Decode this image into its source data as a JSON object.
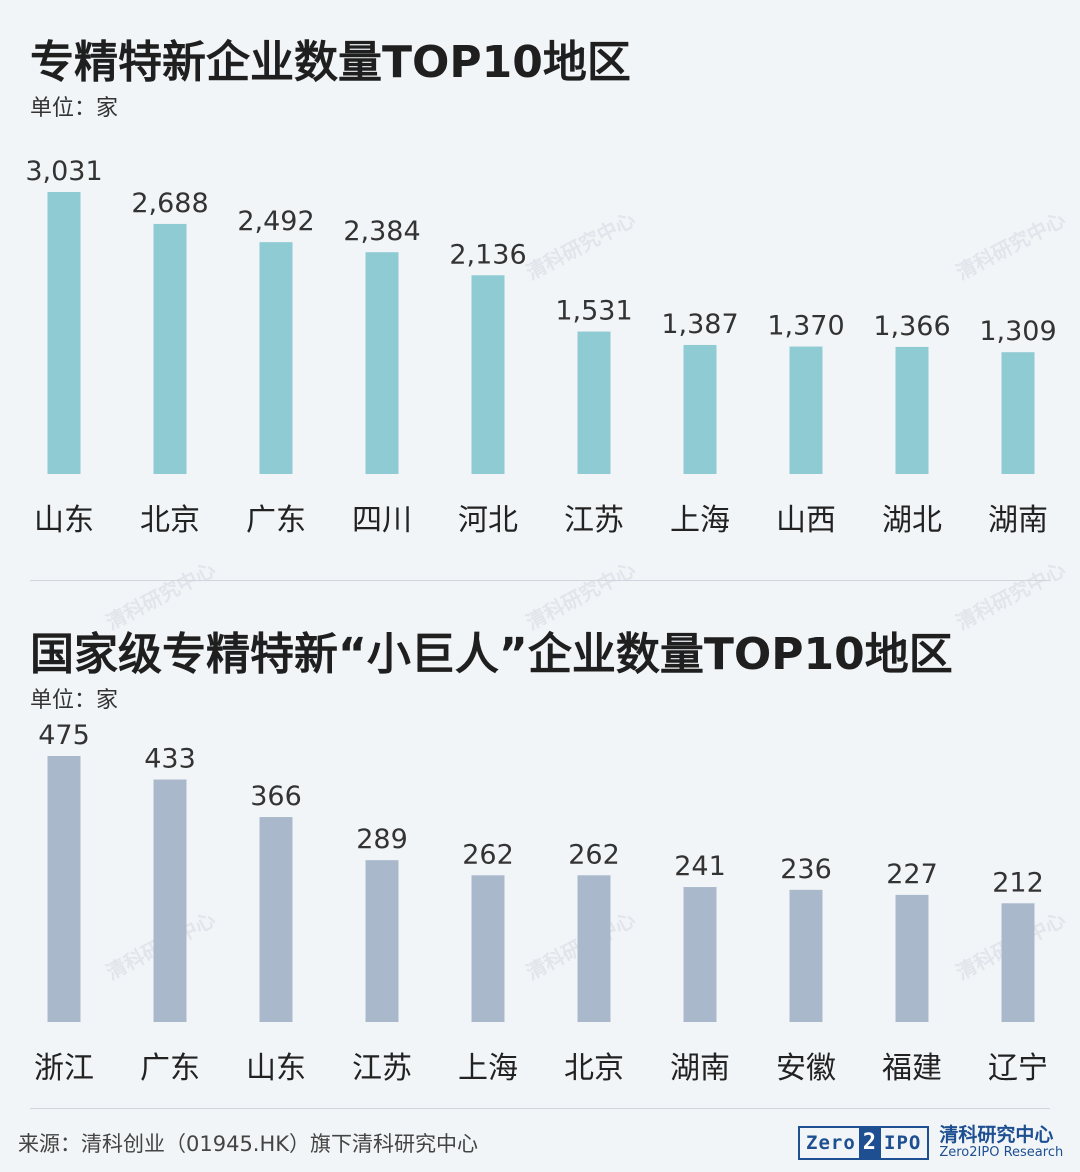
{
  "watermark": {
    "cn": "清科研究中心",
    "en": "Zero2IPO Research",
    "logo": "Zero2IPO"
  },
  "charts": [
    {
      "title": "专精特新企业数量TOP10地区",
      "unit": "单位：家"
    },
    {
      "title": "国家级专精特新“小巨人”企业数量TOP10地区",
      "unit": "单位：家"
    }
  ],
  "chart_data": [
    {
      "type": "bar",
      "title": "专精特新企业数量TOP10地区",
      "unit": "单位：家",
      "categories": [
        "山东",
        "北京",
        "广东",
        "四川",
        "河北",
        "江苏",
        "上海",
        "山西",
        "湖北",
        "湖南"
      ],
      "values": [
        3031,
        2688,
        2492,
        2384,
        2136,
        1531,
        1387,
        1370,
        1366,
        1309
      ],
      "value_labels": [
        "3,031",
        "2,688",
        "2,492",
        "2,384",
        "2,136",
        "1,531",
        "1,387",
        "1,370",
        "1,366",
        "1,309"
      ],
      "color": "#8ecbd3",
      "ylim": [
        0,
        3031
      ],
      "grid": false,
      "legend": "none"
    },
    {
      "type": "bar",
      "title": "国家级专精特新“小巨人”企业数量TOP10地区",
      "unit": "单位：家",
      "categories": [
        "浙江",
        "广东",
        "山东",
        "江苏",
        "上海",
        "北京",
        "湖南",
        "安徽",
        "福建",
        "辽宁"
      ],
      "values": [
        475,
        433,
        366,
        289,
        262,
        262,
        241,
        236,
        227,
        212
      ],
      "value_labels": [
        "475",
        "433",
        "366",
        "289",
        "262",
        "262",
        "241",
        "236",
        "227",
        "212"
      ],
      "color": "#a9b9cb",
      "ylim": [
        0,
        475
      ],
      "grid": false,
      "legend": "none"
    }
  ],
  "footer": {
    "source": "来源：清科创业（01945.HK）旗下清科研究中心",
    "logo_mark_left": "Zero",
    "logo_mark_two": "2",
    "logo_mark_right": "IPO",
    "logo_cn": "清科研究中心",
    "logo_en": "Zero2IPO Research"
  }
}
